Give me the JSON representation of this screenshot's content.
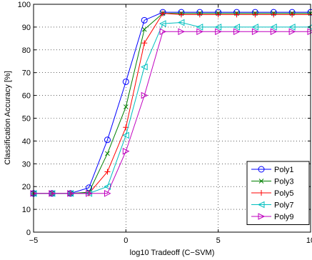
{
  "chart_data": {
    "type": "line",
    "title": "",
    "xlabel": "log10 Tradeoff (C−SVM)",
    "ylabel": "Classification Accuracy [%]",
    "xlim": [
      -5,
      10
    ],
    "ylim": [
      0,
      100
    ],
    "xticks": [
      -5,
      0,
      5,
      10
    ],
    "yticks": [
      0,
      10,
      20,
      30,
      40,
      50,
      60,
      70,
      80,
      90,
      100
    ],
    "grid": true,
    "legend_position": "bottom-right",
    "x": [
      -5,
      -4,
      -3,
      -2,
      -1,
      0,
      1,
      2,
      3,
      4,
      5,
      6,
      7,
      8,
      9,
      10
    ],
    "series": [
      {
        "name": "Poly1",
        "color": "#0000ff",
        "marker": "circle",
        "values": [
          17,
          17,
          17,
          19.5,
          40.5,
          66,
          93,
          96.5,
          96.5,
          96.5,
          96.5,
          96.5,
          96.5,
          96.5,
          96.5,
          96.5
        ]
      },
      {
        "name": "Poly3",
        "color": "#007f00",
        "marker": "x",
        "values": [
          17,
          17,
          17,
          17.5,
          34.5,
          55,
          89,
          96,
          96,
          96,
          96,
          96,
          96,
          96,
          96,
          96
        ]
      },
      {
        "name": "Poly5",
        "color": "#ff0000",
        "marker": "plus",
        "values": [
          17,
          17,
          17,
          17,
          26.5,
          46,
          83,
          96,
          95.5,
          95.5,
          95.5,
          95.5,
          95.5,
          95.5,
          95.5,
          95.5
        ]
      },
      {
        "name": "Poly7",
        "color": "#00bfbf",
        "marker": "triangle-left",
        "values": [
          17,
          17,
          17,
          17,
          20,
          42.5,
          72.5,
          91.5,
          92,
          90,
          90,
          90,
          90,
          90,
          90,
          90
        ]
      },
      {
        "name": "Poly9",
        "color": "#bf00bf",
        "marker": "triangle-right",
        "values": [
          17,
          17,
          17,
          17,
          17,
          35.5,
          60,
          88,
          88,
          88,
          88,
          88,
          88,
          88,
          88,
          88
        ]
      }
    ]
  }
}
